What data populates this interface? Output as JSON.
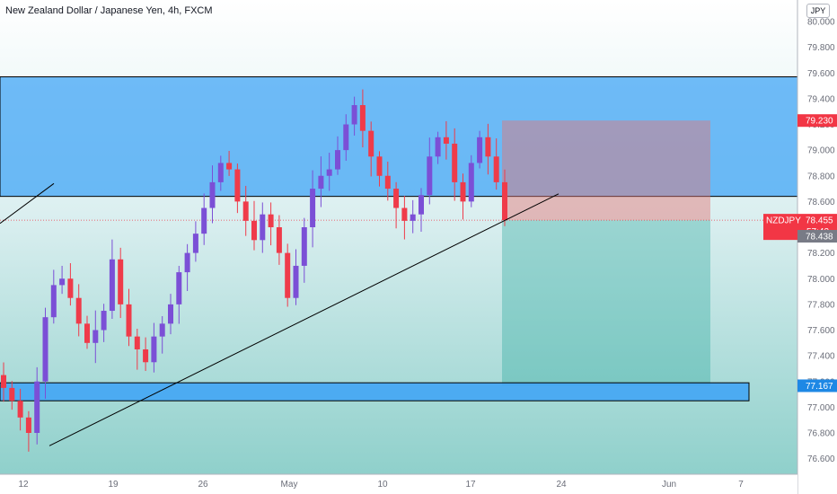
{
  "title": "New Zealand Dollar / Japanese Yen, 4h, FXCM",
  "currency_button": "JPY",
  "price_scale": {
    "ticks": [
      "80.000",
      "79.800",
      "79.600",
      "79.400",
      "79.200",
      "79.000",
      "78.800",
      "78.600",
      "78.400",
      "78.200",
      "78.000",
      "77.800",
      "77.600",
      "77.400",
      "77.200",
      "77.000",
      "76.800",
      "76.600"
    ],
    "ticks_values": [
      80.0,
      79.8,
      79.6,
      79.4,
      79.2,
      79.0,
      78.8,
      78.6,
      78.4,
      78.2,
      78.0,
      77.8,
      77.6,
      77.4,
      77.2,
      77.0,
      76.8,
      76.6
    ]
  },
  "time_scale": {
    "labels": [
      "12",
      "19",
      "26",
      "May",
      "10",
      "17",
      "24",
      "Jun",
      "7"
    ]
  },
  "price_labels": {
    "symbol": "NZDJPY",
    "last_price": "78.455",
    "countdown": "57:42",
    "bid": "78.438",
    "target_high": "79.230",
    "target_low": "77.167"
  },
  "colors": {
    "background": "#ffffff",
    "up_candle": "#7b4fd6",
    "down_candle": "#ef3b4a",
    "zone_blue": "#42a5f5",
    "profit_zone": "#26a69a",
    "stop_zone": "#e57373",
    "price_label_red": "#f23645",
    "price_label_gray": "#787b86",
    "axis_text": "#6a6d78"
  },
  "chart_data": {
    "type": "candlestick",
    "symbol": "NZDJPY",
    "timeframe": "4h",
    "source": "FXCM",
    "ylim": [
      76.55,
      80.08
    ],
    "grid": false,
    "x_axis_labels": [
      "12",
      "19",
      "26",
      "May",
      "10",
      "17",
      "24",
      "Jun",
      "7"
    ],
    "approx_closes": [
      77.15,
      77.05,
      76.92,
      76.8,
      77.2,
      77.7,
      77.95,
      78.0,
      77.85,
      77.65,
      77.5,
      77.6,
      77.75,
      78.15,
      77.8,
      77.55,
      77.45,
      77.35,
      77.55,
      77.65,
      77.8,
      78.05,
      78.2,
      78.35,
      78.55,
      78.75,
      78.9,
      78.85,
      78.6,
      78.45,
      78.3,
      78.5,
      78.4,
      78.2,
      77.85,
      78.1,
      78.4,
      78.7,
      78.8,
      78.85,
      79.0,
      79.2,
      79.35,
      79.15,
      78.95,
      78.8,
      78.7,
      78.55,
      78.45,
      78.5,
      78.65,
      78.95,
      79.1,
      79.05,
      78.75,
      78.6,
      78.9,
      79.1,
      78.95,
      78.75,
      78.455
    ],
    "annotations": {
      "resistance_zone": [
        78.64,
        79.57
      ],
      "support_zone": [
        77.05,
        77.19
      ],
      "short_position": {
        "entry": 78.455,
        "stop": 79.23,
        "target": 77.167
      },
      "trendline": {
        "from": "late April low",
        "to": "May 20 area"
      }
    }
  }
}
